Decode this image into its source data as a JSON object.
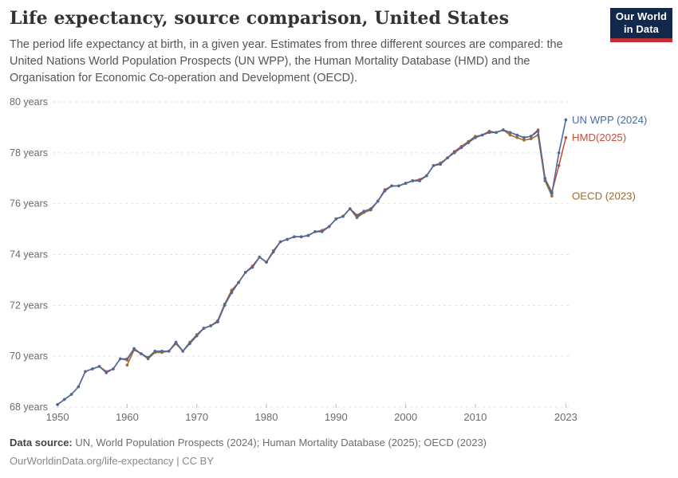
{
  "header": {
    "title": "Life expectancy, source comparison, United States",
    "subtitle_lines": [
      "The period life expectancy at birth, in a given year. Estimates from three different sources are compared: the",
      "United Nations World Population Prospects (UN WPP), the Human Mortality Database (HMD) and the",
      "Organisation for Economic Co-operation and Development (OECD)."
    ],
    "logo": {
      "line1": "Our World",
      "line2": "in Data",
      "bg_color": "#12294D",
      "bar_color": "#BF2E39"
    }
  },
  "chart_data": {
    "type": "line",
    "title": "Life expectancy, source comparison, United States",
    "xlabel": "",
    "ylabel": "years",
    "unit_suffix": " years",
    "x_range_displayed": [
      1950,
      2023
    ],
    "xlim": [
      1949.3,
      2023.3
    ],
    "ylim": [
      68,
      80
    ],
    "grid": "horizontal-dashed",
    "grid_color": "#E0E0E0",
    "tick_color": "#6B6B6B",
    "legend_position": "right-of-line-ends",
    "y_ticks": [
      {
        "value": 80,
        "label": "80 years"
      },
      {
        "value": 78,
        "label": "78 years"
      },
      {
        "value": 76,
        "label": "76 years"
      },
      {
        "value": 74,
        "label": "74 years"
      },
      {
        "value": 72,
        "label": "72 years"
      },
      {
        "value": 70,
        "label": "70 years"
      },
      {
        "value": 68,
        "label": "68 years"
      }
    ],
    "x_ticks": [
      {
        "value": 1950,
        "label": "1950"
      },
      {
        "value": 1960,
        "label": "1960"
      },
      {
        "value": 1970,
        "label": "1970"
      },
      {
        "value": 1980,
        "label": "1980"
      },
      {
        "value": 1990,
        "label": "1990"
      },
      {
        "value": 2000,
        "label": "2000"
      },
      {
        "value": 2010,
        "label": "2010"
      },
      {
        "value": 2023,
        "label": "2023"
      }
    ],
    "series": [
      {
        "name": "OECD",
        "label": "OECD (2023)",
        "color": "#9D6D28",
        "start_year": 1960,
        "end_year": 2021,
        "values": [
          69.65,
          70.25,
          70.1,
          69.9,
          70.15,
          70.15,
          70.2,
          70.5,
          70.2,
          70.55,
          70.85,
          71.1,
          71.2,
          71.4,
          72.05,
          72.6,
          72.9,
          73.3,
          73.5,
          73.9,
          73.7,
          74.1,
          74.5,
          74.6,
          74.7,
          74.7,
          74.75,
          74.9,
          74.9,
          75.1,
          75.4,
          75.5,
          75.8,
          75.45,
          75.65,
          75.75,
          76.1,
          76.5,
          76.7,
          76.7,
          76.8,
          76.9,
          76.9,
          77.1,
          77.5,
          77.55,
          77.8,
          78.05,
          78.25,
          78.45,
          78.65,
          78.7,
          78.8,
          78.8,
          78.9,
          78.7,
          78.6,
          78.5,
          78.55,
          78.7,
          76.9,
          76.3
        ]
      },
      {
        "name": "HMD",
        "label": "HMD(2025)",
        "color": "#C4503C",
        "start_year": 1950,
        "end_year": 2023,
        "values": [
          68.1,
          68.3,
          68.5,
          68.8,
          69.4,
          69.5,
          69.6,
          69.4,
          69.5,
          69.9,
          69.85,
          70.3,
          70.1,
          69.95,
          70.2,
          70.2,
          70.2,
          70.55,
          70.2,
          70.5,
          70.8,
          71.1,
          71.2,
          71.35,
          72.0,
          72.55,
          72.9,
          73.3,
          73.55,
          73.9,
          73.7,
          74.15,
          74.5,
          74.6,
          74.7,
          74.7,
          74.75,
          74.9,
          74.95,
          75.1,
          75.4,
          75.5,
          75.8,
          75.55,
          75.7,
          75.8,
          76.1,
          76.55,
          76.7,
          76.7,
          76.8,
          76.9,
          76.95,
          77.1,
          77.5,
          77.6,
          77.8,
          78.05,
          78.25,
          78.4,
          78.6,
          78.7,
          78.85,
          78.8,
          78.9,
          78.8,
          78.7,
          78.6,
          78.65,
          78.9,
          77.0,
          76.45,
          77.5,
          78.6
        ]
      },
      {
        "name": "UN WPP",
        "label": "UN WPP (2024)",
        "color": "#4C6A9C",
        "start_year": 1950,
        "end_year": 2023,
        "values": [
          68.1,
          68.3,
          68.5,
          68.8,
          69.4,
          69.5,
          69.6,
          69.35,
          69.5,
          69.9,
          69.9,
          70.3,
          70.1,
          69.95,
          70.2,
          70.2,
          70.2,
          70.55,
          70.2,
          70.5,
          70.8,
          71.1,
          71.2,
          71.35,
          72.0,
          72.5,
          72.9,
          73.3,
          73.5,
          73.9,
          73.7,
          74.1,
          74.5,
          74.6,
          74.7,
          74.7,
          74.75,
          74.9,
          74.9,
          75.1,
          75.4,
          75.5,
          75.8,
          75.5,
          75.7,
          75.8,
          76.1,
          76.5,
          76.7,
          76.7,
          76.8,
          76.9,
          76.9,
          77.1,
          77.5,
          77.55,
          77.8,
          78.0,
          78.2,
          78.4,
          78.6,
          78.7,
          78.8,
          78.8,
          78.9,
          78.8,
          78.7,
          78.6,
          78.65,
          78.85,
          77.0,
          76.4,
          78.0,
          79.3
        ]
      }
    ]
  },
  "footer": {
    "data_source_label": "Data source:",
    "data_source_text": " UN, World Population Prospects (2024); Human Mortality Database (2025); OECD (2023)",
    "license_line": "OurWorldinData.org/life-expectancy | CC BY"
  }
}
